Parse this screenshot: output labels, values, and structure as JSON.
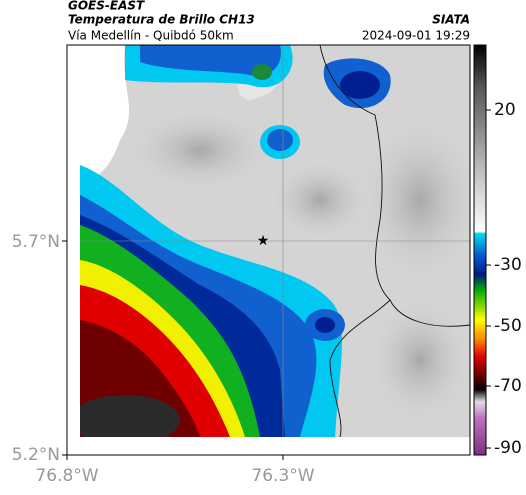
{
  "header": {
    "source": "GOES-EAST",
    "title": "Temperatura de Brillo CH13",
    "org": "SIATA",
    "subtitle": "Vía Medellín - Quibdó 50km",
    "datetime": "2024-09-01 19:29"
  },
  "axes": {
    "lat_labels": [
      "5.7°N",
      "5.2°N"
    ],
    "lon_labels": [
      "76.8°W",
      "76.3°W"
    ]
  },
  "colorbar": {
    "ticks": [
      20,
      -30,
      -50,
      -70,
      -90
    ]
  }
}
